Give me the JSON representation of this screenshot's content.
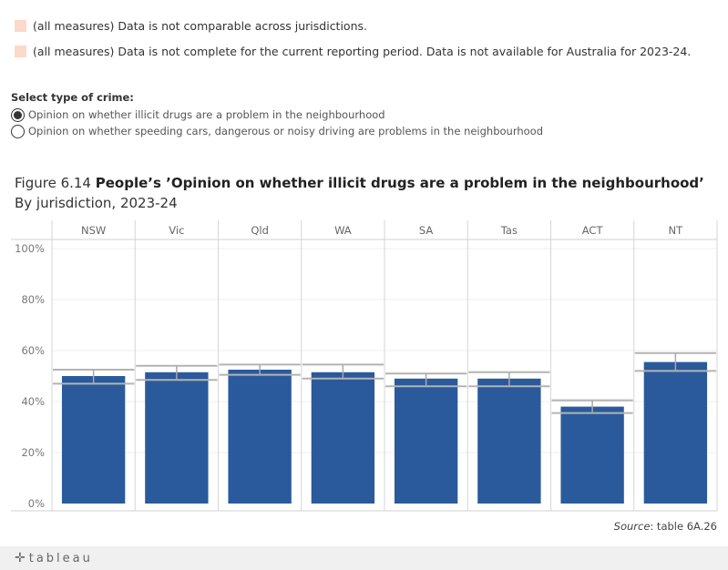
{
  "notes": [
    {
      "text": "(all measures) Data is not comparable across jurisdictions.",
      "color": "#fbd9cb"
    },
    {
      "text": "(all measures) Data is not complete for the current reporting period. Data is not available for Australia for 2023-24.",
      "color": "#fbd9cb"
    }
  ],
  "selector": {
    "title": "Select type of crime:",
    "options": [
      {
        "label": "Opinion on whether illicit drugs are a problem in the neighbourhood",
        "selected": true
      },
      {
        "label": "Opinion on whether speeding cars, dangerous or noisy driving are problems in the neighbourhood",
        "selected": false
      }
    ]
  },
  "figure": {
    "number": "Figure 6.14",
    "title": "People’s ’Opinion on whether illicit drugs are a problem in the neighbourhood’",
    "subtitle": "By jurisdiction, 2023-24"
  },
  "source": {
    "label": "Source",
    "text": ": table 6A.26"
  },
  "footer": {
    "logo_text": "tableau",
    "logo_icon": "tableau-plus-icon"
  },
  "chart_data": {
    "type": "bar",
    "categories": [
      "NSW",
      "Vic",
      "Qld",
      "WA",
      "SA",
      "Tas",
      "ACT",
      "NT"
    ],
    "values": [
      50,
      51.5,
      52.5,
      51.5,
      49,
      49,
      38,
      55.5
    ],
    "ci_low": [
      47,
      48.5,
      50.5,
      49,
      46,
      46,
      35.5,
      52
    ],
    "ci_high": [
      52.5,
      54,
      54.5,
      54.5,
      51,
      51.5,
      40.5,
      59
    ],
    "ylim": [
      0,
      100
    ],
    "yticks": [
      "0%",
      "20%",
      "40%",
      "60%",
      "80%",
      "100%"
    ],
    "ytick_values": [
      0,
      20,
      40,
      60,
      80,
      100
    ],
    "bar_color": "#2a5a9b",
    "ci_color": "#b3b3b3",
    "grid": true
  }
}
